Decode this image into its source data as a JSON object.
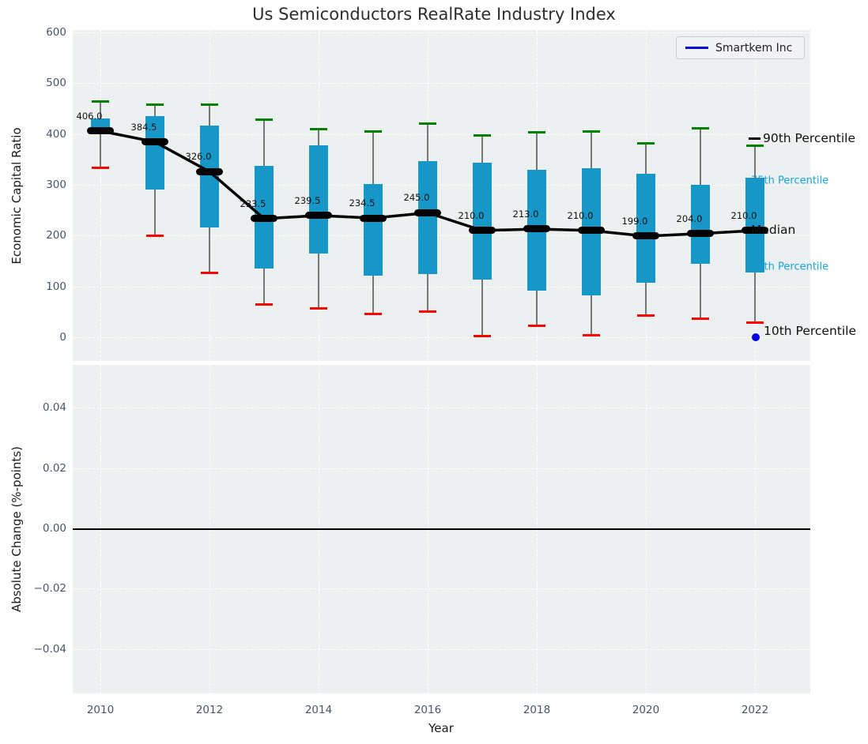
{
  "title": "Us Semiconductors RealRate Industry Index",
  "legend": {
    "label": "Smartkem Inc"
  },
  "annotations": {
    "p90": "90th Percentile",
    "p75": "75th Percentile",
    "median": "Median",
    "p25": "25th Percentile",
    "p10": "10th Percentile"
  },
  "axes": {
    "top": {
      "ylabel": "Economic Capital Ratio"
    },
    "bottom": {
      "ylabel": "Absolute Change (%-points)",
      "xlabel": "Year"
    }
  },
  "colors": {
    "panel_bg": "#ecf0f1",
    "grid": "#ffffff",
    "box_fill": "#1697c8",
    "cap_top": "#008000",
    "cap_bottom": "#ff0000",
    "whisker": "#777777",
    "median": "#000000",
    "tick": "#47566a",
    "annotation_cyan": "#18a3d8",
    "annotation_black": "#111111",
    "legend_line": "#0000dc",
    "highlight_dot": "#0000ee"
  },
  "chart_data": [
    {
      "type": "boxplot-timeseries",
      "panel": "top",
      "title": "Us Semiconductors RealRate Industry Index",
      "ylabel": "Economic Capital Ratio",
      "ylim": [
        -47,
        605
      ],
      "yticks": [
        0,
        100,
        200,
        300,
        400,
        500,
        600
      ],
      "xticks": [
        2010,
        2012,
        2014,
        2016,
        2018,
        2020,
        2022
      ],
      "grid": true,
      "legend_position": "upper right",
      "whisker_meaning": {
        "green_cap": "90th Percentile",
        "box_top": "75th Percentile",
        "black_marker": "Median",
        "box_bottom": "25th Percentile",
        "red_cap": "10th Percentile"
      },
      "boxes": [
        {
          "year": 2010,
          "p10": 334,
          "p25": 401,
          "median": 406.0,
          "p75": 431,
          "p90": 464
        },
        {
          "year": 2011,
          "p10": 200,
          "p25": 291,
          "median": 384.5,
          "p75": 436,
          "p90": 458
        },
        {
          "year": 2012,
          "p10": 126,
          "p25": 216,
          "median": 326.0,
          "p75": 417,
          "p90": 458
        },
        {
          "year": 2013,
          "p10": 64,
          "p25": 135,
          "median": 233.5,
          "p75": 338,
          "p90": 429
        },
        {
          "year": 2014,
          "p10": 57,
          "p25": 165,
          "median": 239.5,
          "p75": 377,
          "p90": 409
        },
        {
          "year": 2015,
          "p10": 46,
          "p25": 122,
          "median": 234.5,
          "p75": 302,
          "p90": 405
        },
        {
          "year": 2016,
          "p10": 51,
          "p25": 124,
          "median": 245.0,
          "p75": 347,
          "p90": 421
        },
        {
          "year": 2017,
          "p10": 3,
          "p25": 114,
          "median": 210.0,
          "p75": 343,
          "p90": 397
        },
        {
          "year": 2018,
          "p10": 22,
          "p25": 91,
          "median": 213.0,
          "p75": 330,
          "p90": 403
        },
        {
          "year": 2019,
          "p10": 4,
          "p25": 82,
          "median": 210.0,
          "p75": 332,
          "p90": 405
        },
        {
          "year": 2020,
          "p10": 43,
          "p25": 108,
          "median": 199.0,
          "p75": 322,
          "p90": 381
        },
        {
          "year": 2021,
          "p10": 36,
          "p25": 145,
          "median": 204.0,
          "p75": 300,
          "p90": 411
        },
        {
          "year": 2022,
          "p10": 28,
          "p25": 127,
          "median": 210.0,
          "p75": 314,
          "p90": 377
        }
      ],
      "median_line_values": [
        406.0,
        384.5,
        326.0,
        233.5,
        239.5,
        234.5,
        245.0,
        210.0,
        213.0,
        210.0,
        199.0,
        204.0,
        210.0
      ],
      "highlight_point": {
        "series": "Smartkem Inc",
        "year": 2022,
        "value": 0
      }
    },
    {
      "type": "line",
      "panel": "bottom",
      "ylabel": "Absolute Change (%-points)",
      "xlabel": "Year",
      "ylim": [
        -0.0545,
        0.0545
      ],
      "yticks": [
        0.04,
        0.02,
        0.0,
        -0.02,
        -0.04
      ],
      "ytick_labels": [
        "0.04",
        "0.02",
        "0.00",
        "−0.02",
        "−0.04"
      ],
      "xticks": [
        2010,
        2012,
        2014,
        2016,
        2018,
        2020,
        2022
      ],
      "grid": true,
      "zero_line": 0.0,
      "series": []
    }
  ]
}
